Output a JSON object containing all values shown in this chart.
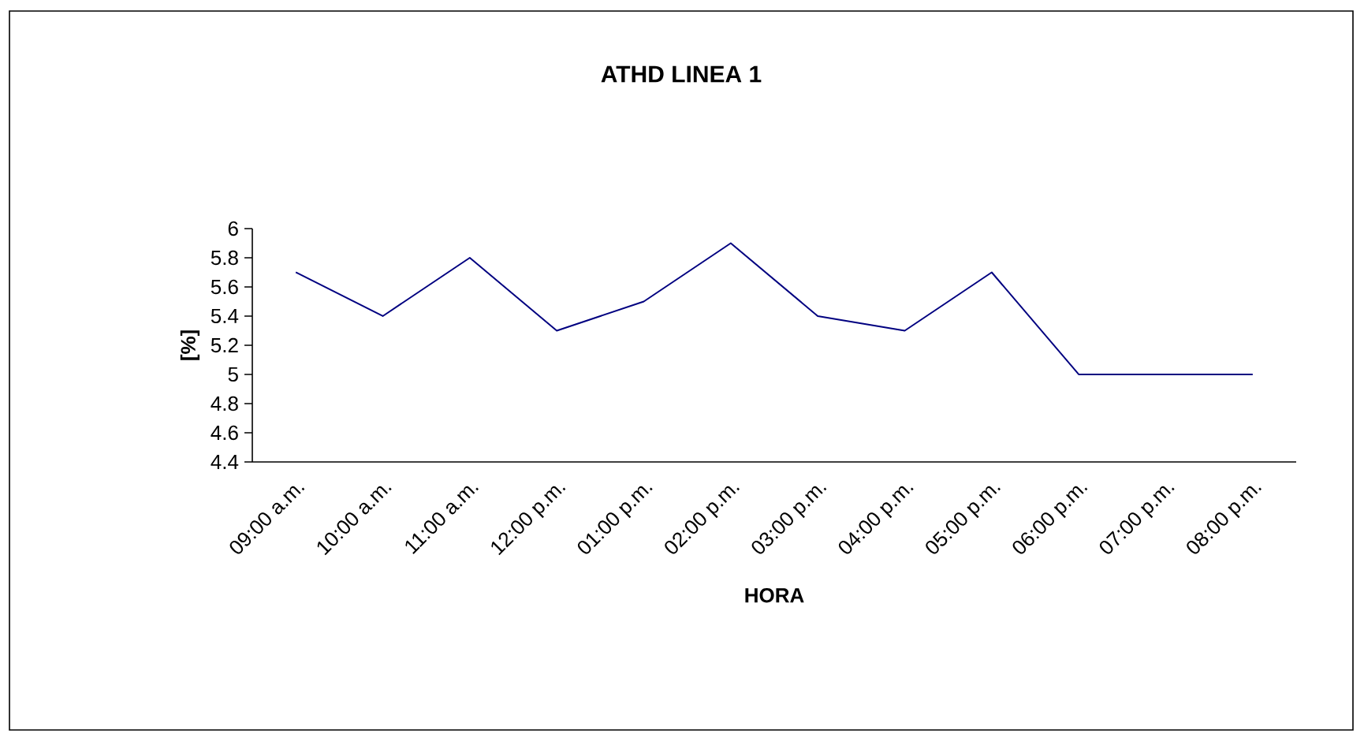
{
  "chart_data": {
    "type": "line",
    "title": "ATHD LINEA 1",
    "xlabel": "HORA",
    "ylabel": "[%]",
    "categories": [
      "09:00 a.m.",
      "10:00 a.m.",
      "11:00 a.m.",
      "12:00 p.m.",
      "01:00 p.m.",
      "02:00 p.m.",
      "03:00 p.m.",
      "04:00 p.m.",
      "05:00 p.m.",
      "06:00 p.m.",
      "07:00 p.m.",
      "08:00 p.m."
    ],
    "series": [
      {
        "color": "#000080",
        "values": [
          5.7,
          5.4,
          5.8,
          5.3,
          5.5,
          5.9,
          5.4,
          5.3,
          5.7,
          5.0,
          5.0,
          5.0
        ]
      }
    ],
    "ylim": [
      4.4,
      6
    ],
    "yticks": [
      4.4,
      4.6,
      4.8,
      5,
      5.2,
      5.4,
      5.6,
      5.8,
      6
    ]
  }
}
